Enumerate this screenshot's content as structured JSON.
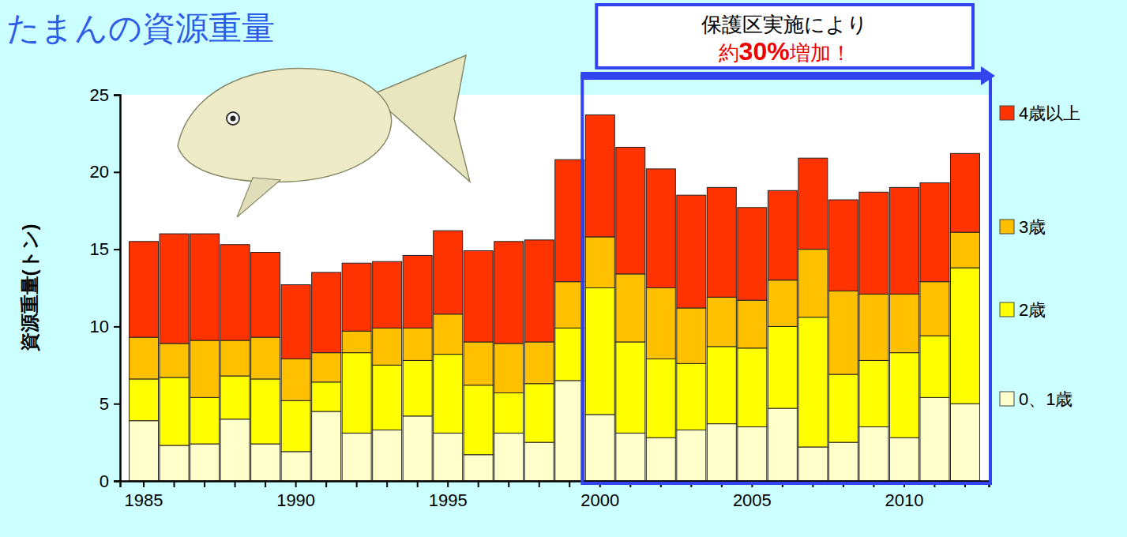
{
  "chart_data": {
    "type": "bar",
    "stacked": true,
    "title": "たまんの資源重量",
    "y_label": "資源重量(トン)",
    "annotations": [
      "保護区実施により",
      "約30%増加！"
    ],
    "categories": [
      "1985",
      null,
      null,
      null,
      null,
      "1990",
      null,
      null,
      null,
      null,
      "1995",
      null,
      null,
      null,
      null,
      "2000",
      null,
      null,
      null,
      null,
      "2005",
      null,
      null,
      null,
      null,
      "2010",
      null,
      null
    ],
    "series": [
      {
        "name": "0、1歳",
        "color": "#ffffcc",
        "values": [
          3.9,
          2.3,
          2.4,
          4.0,
          2.4,
          1.9,
          4.5,
          3.1,
          3.3,
          4.2,
          3.1,
          1.7,
          3.1,
          2.5,
          6.5,
          4.3,
          3.1,
          2.8,
          3.3,
          3.7,
          3.5,
          4.7,
          2.2,
          2.5,
          3.5,
          2.8,
          5.4,
          5.0
        ]
      },
      {
        "name": "2歳",
        "color": "#ffff00",
        "values": [
          2.7,
          4.4,
          3.0,
          2.8,
          4.2,
          3.3,
          1.9,
          5.2,
          4.2,
          3.6,
          5.1,
          4.5,
          2.6,
          3.8,
          3.4,
          8.2,
          5.9,
          5.1,
          4.3,
          5.0,
          5.1,
          5.3,
          8.4,
          4.4,
          4.3,
          5.5,
          4.0,
          8.8
        ]
      },
      {
        "name": "3歳",
        "color": "#ffc000",
        "values": [
          2.7,
          2.2,
          3.7,
          2.3,
          2.7,
          2.7,
          1.9,
          1.4,
          2.4,
          2.1,
          2.6,
          2.8,
          3.2,
          2.7,
          3.0,
          3.3,
          4.4,
          4.6,
          3.6,
          3.2,
          3.1,
          3.0,
          4.4,
          5.4,
          4.3,
          3.8,
          3.5,
          2.3
        ]
      },
      {
        "name": "4歳以上",
        "color": "#ff3300",
        "values": [
          6.2,
          7.1,
          6.9,
          6.2,
          5.5,
          4.8,
          5.2,
          4.4,
          4.3,
          4.7,
          5.4,
          5.9,
          6.6,
          6.6,
          7.9,
          7.9,
          8.2,
          7.7,
          7.3,
          7.1,
          6.0,
          5.8,
          5.9,
          5.9,
          6.6,
          6.9,
          6.4,
          5.1
        ]
      }
    ],
    "ylim": [
      0,
      25
    ],
    "yticks": [
      0,
      5,
      10,
      15,
      20,
      25
    ],
    "grid": false,
    "legend": "right"
  }
}
